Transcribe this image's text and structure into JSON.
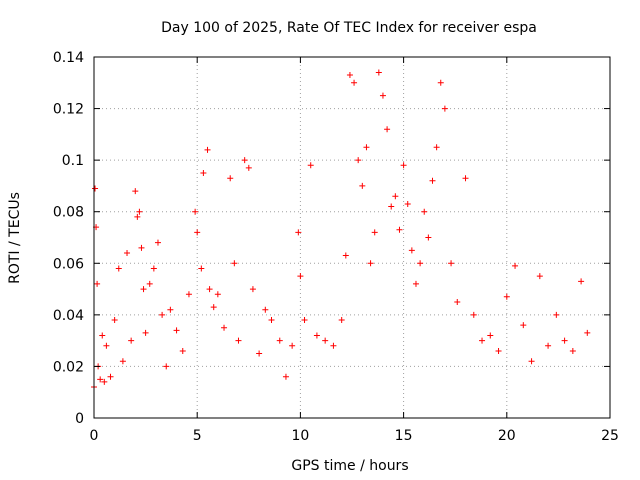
{
  "chart_data": {
    "type": "scatter",
    "title": "Day 100 of 2025, Rate Of TEC Index for receiver espa",
    "xlabel": "GPS time / hours",
    "ylabel": "ROTI / TECUs",
    "xlim": [
      0,
      25
    ],
    "ylim": [
      0,
      0.14
    ],
    "xticks": [
      0,
      5,
      10,
      15,
      20,
      25
    ],
    "xtick_labels": [
      "0",
      "5",
      "10",
      "15",
      "20",
      "25"
    ],
    "yticks": [
      0,
      0.02,
      0.04,
      0.06,
      0.08,
      0.1,
      0.12,
      0.14
    ],
    "ytick_labels": [
      "0",
      "0.02",
      "0.04",
      "0.06",
      "0.08",
      "0.1",
      "0.12",
      "0.14"
    ],
    "grid": true,
    "marker": "+",
    "color": "#ff0000",
    "series": [
      {
        "x": [
          0.0,
          0.05,
          0.1,
          0.15,
          0.2,
          0.3,
          0.4,
          0.5,
          0.6,
          0.8,
          1.0,
          1.2,
          1.4,
          1.6,
          1.8,
          2.0,
          2.1,
          2.2,
          2.3,
          2.4,
          2.5,
          2.7,
          2.9,
          3.1,
          3.3,
          3.5,
          3.7,
          4.0,
          4.3,
          4.6,
          4.9,
          5.0,
          5.2,
          5.3,
          5.5,
          5.6,
          5.8,
          6.0,
          6.3,
          6.6,
          6.8,
          7.0,
          7.3,
          7.5,
          7.7,
          8.0,
          8.3,
          8.6,
          9.0,
          9.3,
          9.6,
          9.9,
          10.0,
          10.2,
          10.5,
          10.8,
          11.2,
          11.6,
          12.0,
          12.2,
          12.4,
          12.6,
          12.8,
          13.0,
          13.2,
          13.4,
          13.6,
          13.8,
          14.0,
          14.2,
          14.4,
          14.6,
          14.8,
          15.0,
          15.2,
          15.4,
          15.6,
          15.8,
          16.0,
          16.2,
          16.4,
          16.6,
          16.8,
          17.0,
          17.3,
          17.6,
          18.0,
          18.4,
          18.8,
          19.2,
          19.6,
          20.0,
          20.4,
          20.8,
          21.2,
          21.6,
          22.0,
          22.4,
          22.8,
          23.2,
          23.6,
          23.9
        ],
        "y": [
          0.012,
          0.089,
          0.074,
          0.052,
          0.02,
          0.015,
          0.032,
          0.014,
          0.028,
          0.016,
          0.038,
          0.058,
          0.022,
          0.064,
          0.03,
          0.088,
          0.078,
          0.08,
          0.066,
          0.05,
          0.033,
          0.052,
          0.058,
          0.068,
          0.04,
          0.02,
          0.042,
          0.034,
          0.026,
          0.048,
          0.08,
          0.072,
          0.058,
          0.095,
          0.104,
          0.05,
          0.043,
          0.048,
          0.035,
          0.093,
          0.06,
          0.03,
          0.1,
          0.097,
          0.05,
          0.025,
          0.042,
          0.038,
          0.03,
          0.016,
          0.028,
          0.072,
          0.055,
          0.038,
          0.098,
          0.032,
          0.03,
          0.028,
          0.038,
          0.063,
          0.133,
          0.13,
          0.1,
          0.09,
          0.105,
          0.06,
          0.072,
          0.134,
          0.125,
          0.112,
          0.082,
          0.086,
          0.073,
          0.098,
          0.083,
          0.065,
          0.052,
          0.06,
          0.08,
          0.07,
          0.092,
          0.105,
          0.13,
          0.12,
          0.06,
          0.045,
          0.093,
          0.04,
          0.03,
          0.032,
          0.026,
          0.047,
          0.059,
          0.036,
          0.022,
          0.055,
          0.028,
          0.04,
          0.03,
          0.026,
          0.053,
          0.033
        ]
      }
    ]
  }
}
